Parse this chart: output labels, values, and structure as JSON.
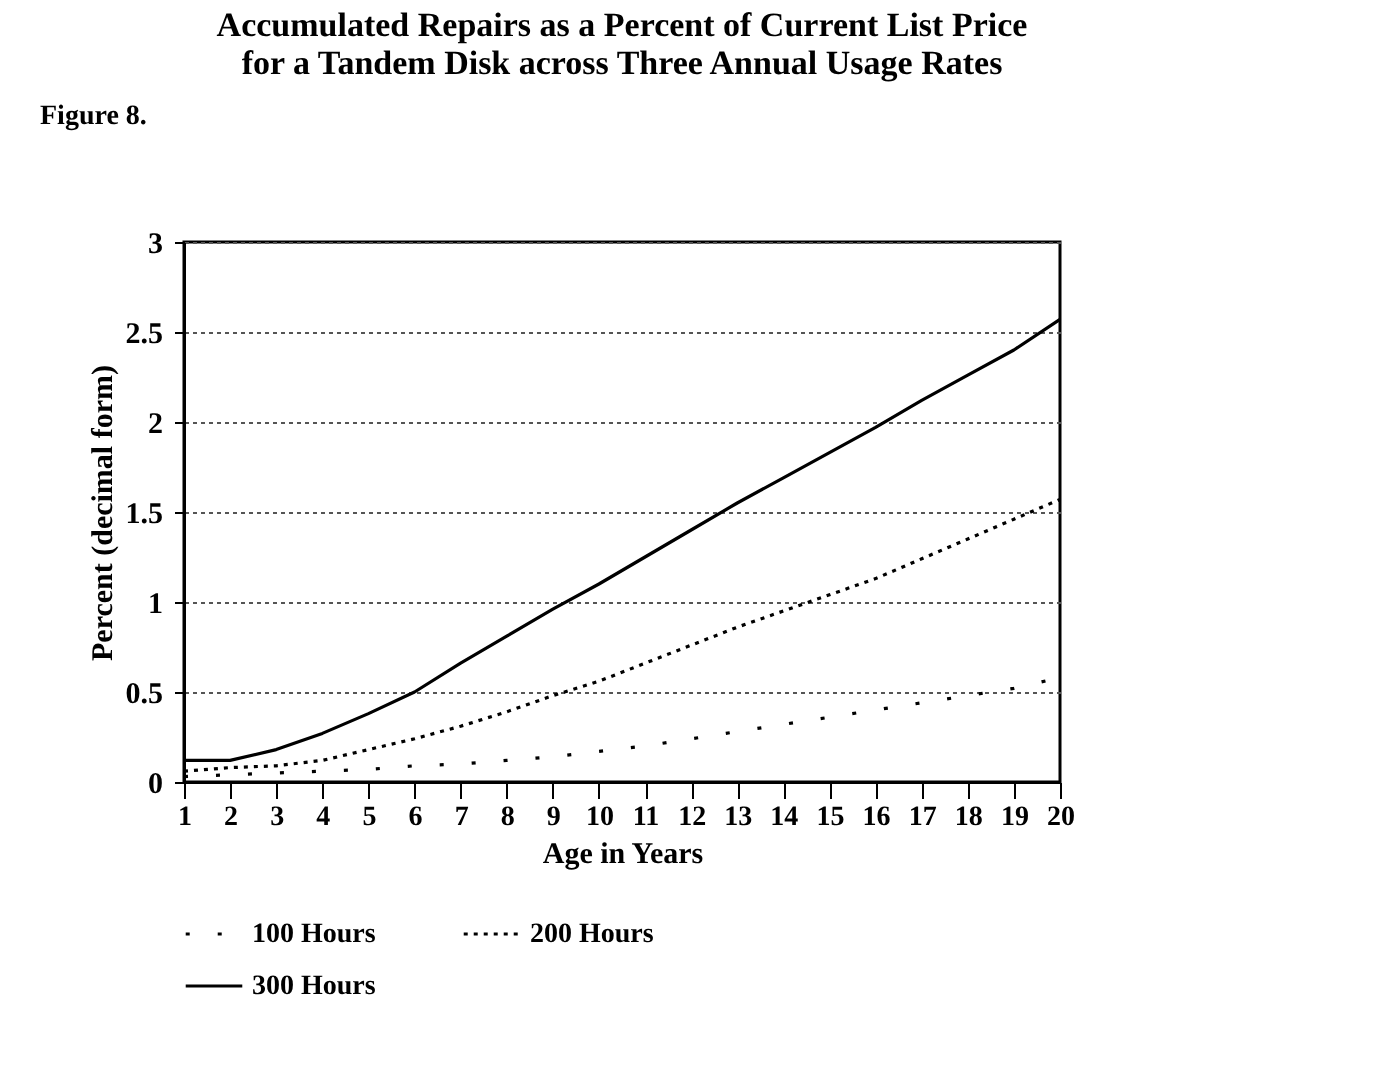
{
  "chart_data": {
    "type": "line",
    "title": "Accumulated Repairs as a Percent of Current List Price\nfor a Tandem Disk across Three Annual Usage Rates",
    "annotations": [
      "Figure 8."
    ],
    "xlabel": "Age in Years",
    "ylabel": "Percent (decimal form)",
    "x": [
      1,
      2,
      3,
      4,
      5,
      6,
      7,
      8,
      9,
      10,
      11,
      12,
      13,
      14,
      15,
      16,
      17,
      18,
      19,
      20
    ],
    "series": [
      {
        "name": "100 Hours",
        "color": "#000000",
        "line_style": "dotted",
        "values": [
          0.03,
          0.04,
          0.05,
          0.06,
          0.07,
          0.09,
          0.1,
          0.12,
          0.14,
          0.17,
          0.2,
          0.24,
          0.28,
          0.32,
          0.36,
          0.4,
          0.44,
          0.48,
          0.52,
          0.58
        ]
      },
      {
        "name": "200 Hours",
        "color": "#000000",
        "line_style": "dotted",
        "values": [
          0.06,
          0.08,
          0.09,
          0.12,
          0.18,
          0.24,
          0.31,
          0.39,
          0.48,
          0.56,
          0.66,
          0.76,
          0.86,
          0.95,
          1.04,
          1.13,
          1.24,
          1.35,
          1.46,
          1.57
        ]
      },
      {
        "name": "300 Hours",
        "color": "#000000",
        "line_style": "solid",
        "values": [
          0.12,
          0.12,
          0.18,
          0.27,
          0.38,
          0.5,
          0.66,
          0.81,
          0.96,
          1.1,
          1.25,
          1.4,
          1.55,
          1.69,
          1.83,
          1.97,
          2.12,
          2.26,
          2.4,
          2.57
        ]
      }
    ],
    "xlim": [
      1,
      20
    ],
    "xticks": [
      1,
      2,
      3,
      4,
      5,
      6,
      7,
      8,
      9,
      10,
      11,
      12,
      13,
      14,
      15,
      16,
      17,
      18,
      19,
      20
    ],
    "ylim": [
      0,
      3
    ],
    "yticks": [
      0,
      0.5,
      1,
      1.5,
      2,
      2.5,
      3
    ],
    "grid": "y",
    "legend": "bottom",
    "marker": "none"
  }
}
